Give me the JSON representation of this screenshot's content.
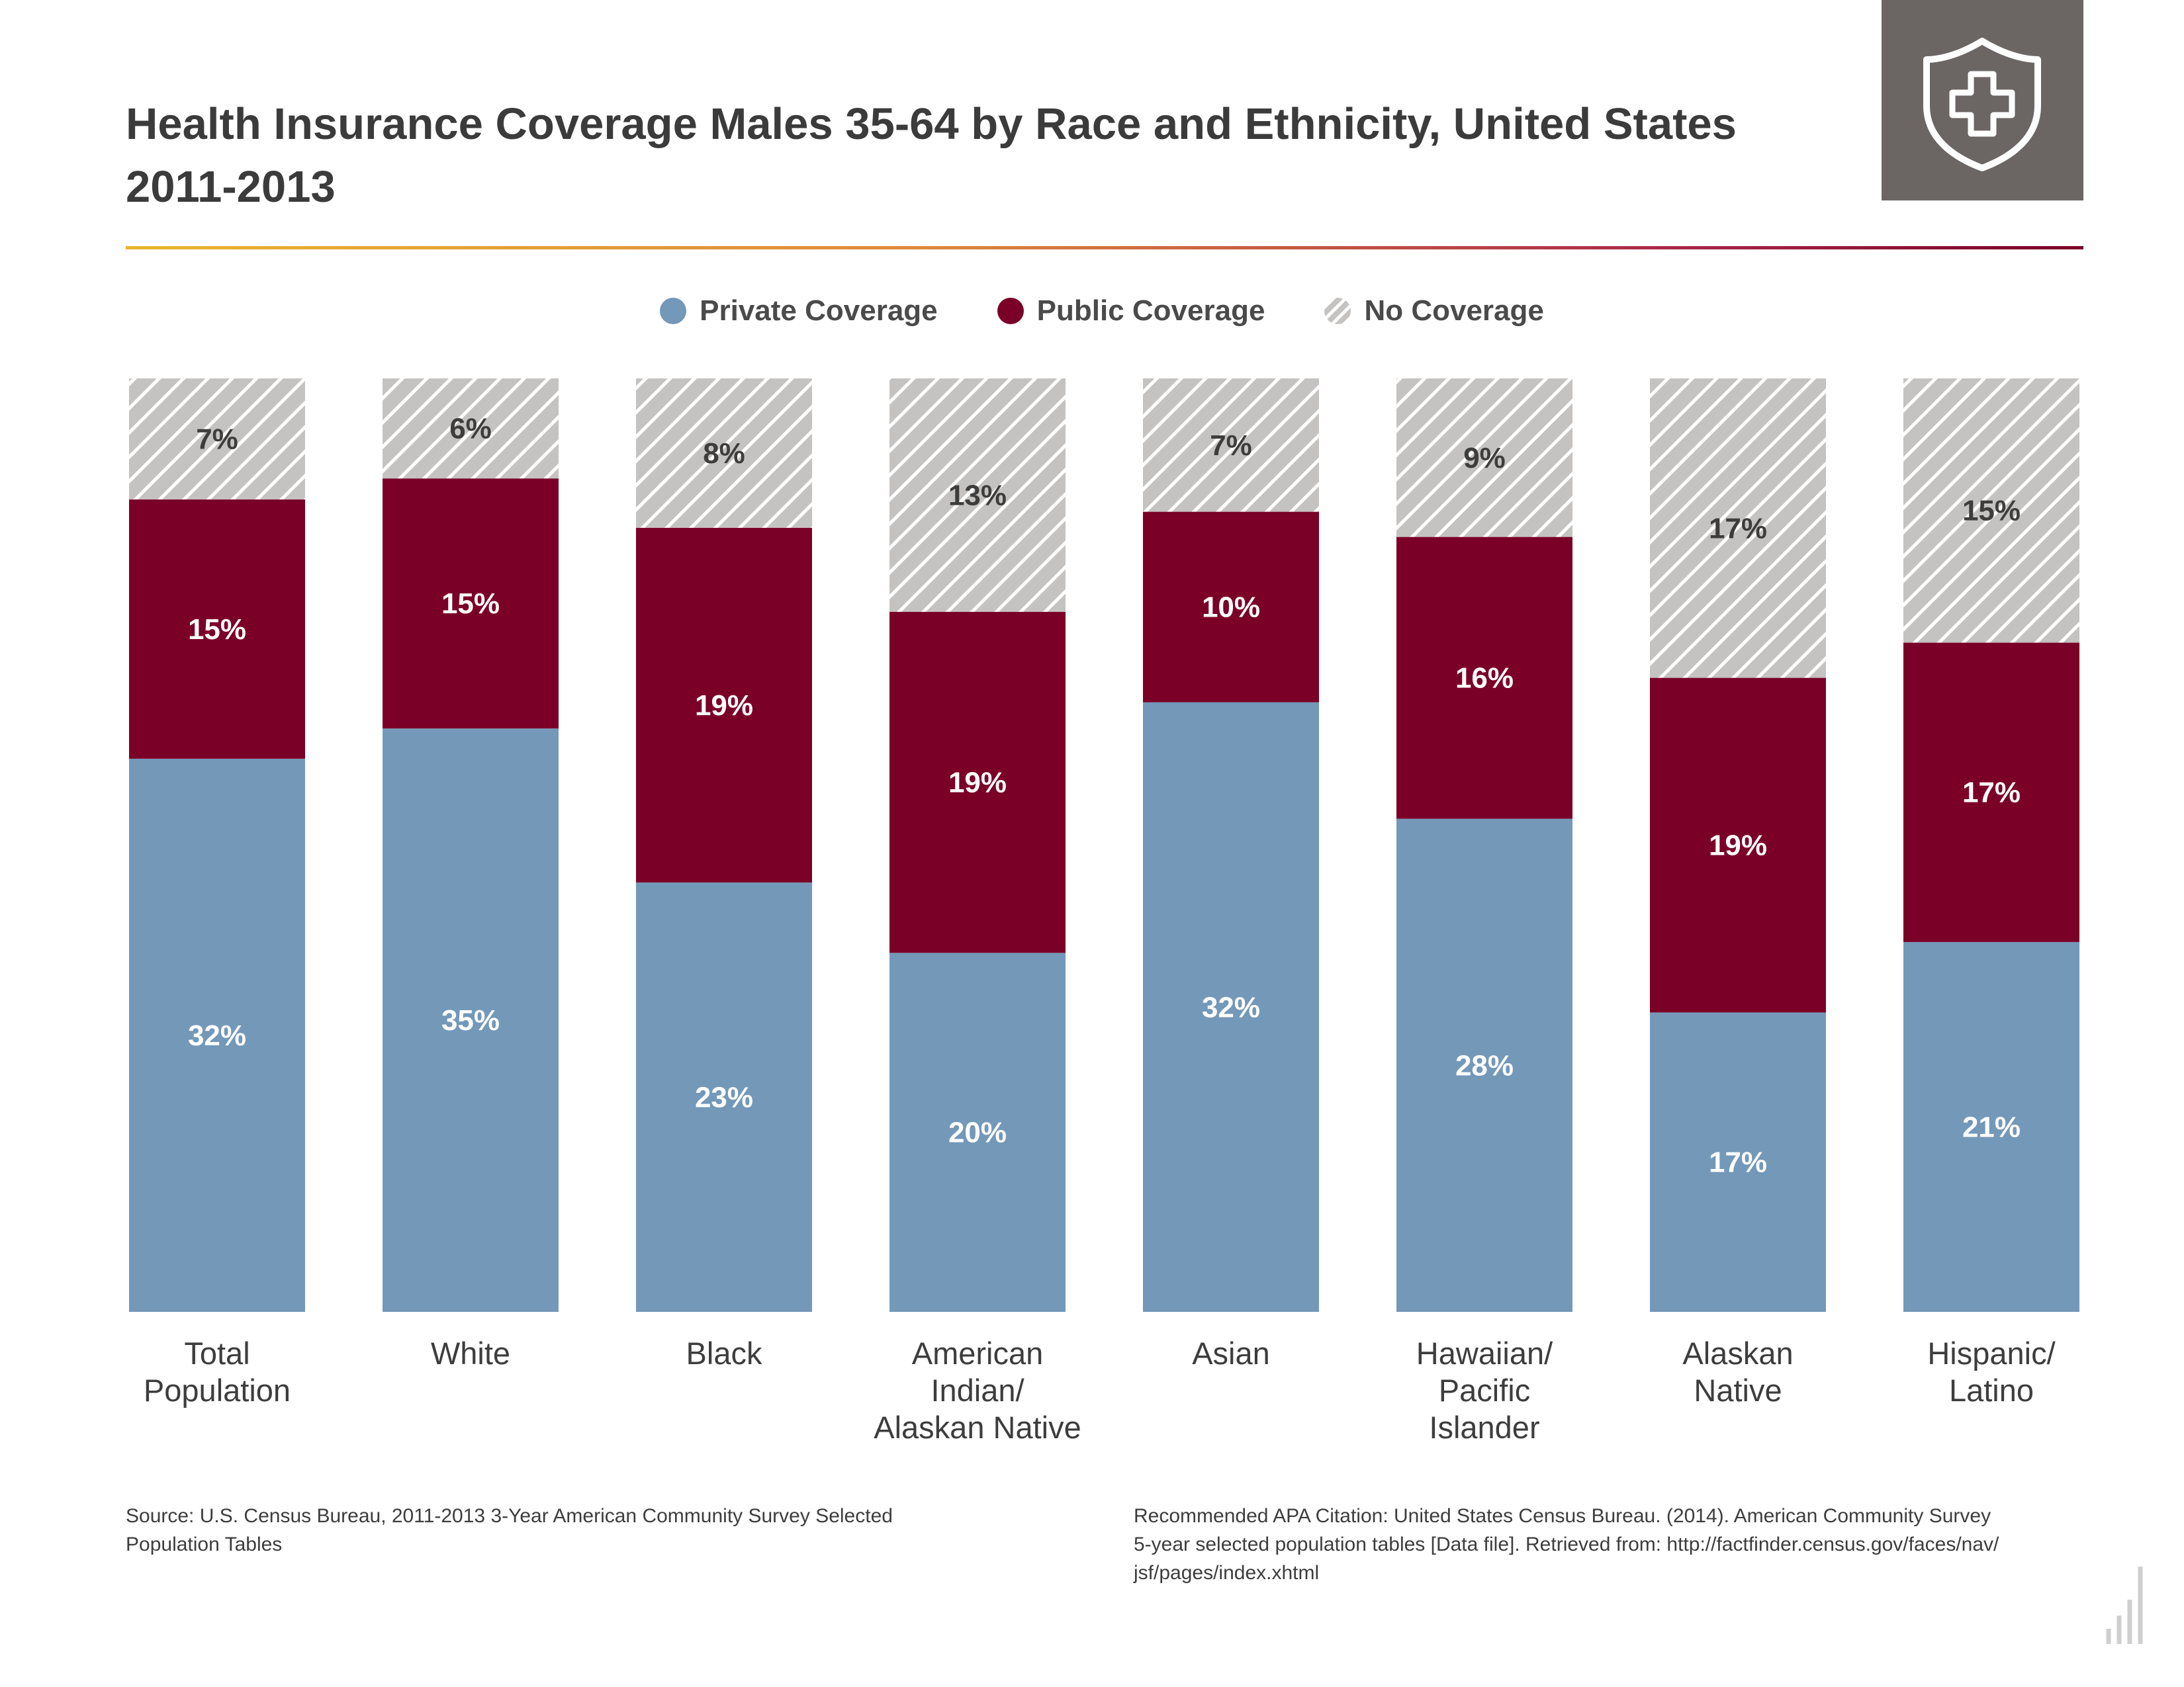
{
  "title": "Health Insurance Coverage Males 35-64 by Race and Ethnicity, United States\n2011-2013",
  "badge": {
    "icon": "shield-plus-icon",
    "background": "#6b6564"
  },
  "legend": [
    {
      "label": "Private Coverage",
      "color": "#7498b8"
    },
    {
      "label": "Public Coverage",
      "color": "#7a0028"
    },
    {
      "label": "No Coverage",
      "color": "#c5c3c1",
      "pattern": "hatched"
    }
  ],
  "chart_data": {
    "type": "bar",
    "stacked": true,
    "categories": [
      "Total\nPopulation",
      "White",
      "Black",
      "American\nIndian/\nAlaskan Native",
      "Asian",
      "Hawaiian/\nPacific\nIslander",
      "Alaskan\nNative",
      "Hispanic/\nLatino"
    ],
    "series": [
      {
        "name": "Private Coverage",
        "values": [
          32,
          35,
          23,
          20,
          32,
          28,
          17,
          21
        ],
        "labels": [
          "32%",
          "35%",
          "23%",
          "20%",
          "32%",
          "28%",
          "17%",
          "21%"
        ],
        "color": "#7498b8",
        "label_color": "#ffffff"
      },
      {
        "name": "Public Coverage",
        "values": [
          15,
          15,
          19,
          19,
          10,
          16,
          19,
          17
        ],
        "labels": [
          "15%",
          "15%",
          "19%",
          "19%",
          "10%",
          "16%",
          "19%",
          "17%"
        ],
        "color": "#7a0028",
        "label_color": "#ffffff"
      },
      {
        "name": "No Coverage",
        "values": [
          7,
          6,
          8,
          13,
          7,
          9,
          17,
          15
        ],
        "labels": [
          "7%",
          "6%",
          "8%",
          "13%",
          "7%",
          "9%",
          "17%",
          "15%"
        ],
        "color": "#c5c3c1",
        "pattern": "hatched",
        "label_color": "#3d3d3d"
      }
    ],
    "legend_position": "top-center",
    "grid": false
  },
  "footer": {
    "source": "Source: U.S. Census Bureau, 2011-2013 3-Year American Community Survey Selected\nPopulation Tables",
    "citation": "Recommended APA Citation: United States Census Bureau. (2014). American Community Survey\n5-year selected population tables [Data file]. Retrieved from: http://factfinder.census.gov/faces/nav/\njsf/pages/index.xhtml"
  },
  "corner_logo": {
    "icon": "bar-logo-icon",
    "color": "#cfcfcf"
  }
}
